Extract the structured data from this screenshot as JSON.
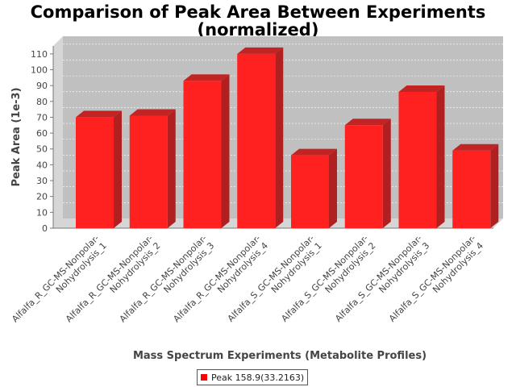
{
  "chart_data": {
    "type": "bar",
    "title": "Comparison of Peak Area Between Experiments",
    "subtitle": "(normalized)",
    "xlabel": "Mass Spectrum Experiments (Metabolite Profiles)",
    "ylabel": "Peak Area (1e-3)",
    "ylim": [
      0,
      115
    ],
    "yticks": [
      0,
      10,
      20,
      30,
      40,
      50,
      60,
      70,
      80,
      90,
      100,
      110
    ],
    "grid": true,
    "legend_position": "bottom",
    "bar_color": "#ff2020",
    "categories": [
      [
        "Alfalfa_R_GC-MS-Nonpolar-",
        "Nohydrolysis_1"
      ],
      [
        "Alfalfa_R_GC-MS-Nonpolar-",
        "Nohydrolysis_2"
      ],
      [
        "Alfalfa_R_GC-MS-Nonpolar-",
        "Nohydrolysis_3"
      ],
      [
        "Alfalfa_R_GC-MS-Nonpolar-",
        "Nohydrolysis_4"
      ],
      [
        "Alfalfa_S_GC-MS-Nonpolar-",
        "Nohydrolysis_1"
      ],
      [
        "Alfalfa_S_GC-MS-Nonpolar-",
        "Nohydrolysis_2"
      ],
      [
        "Alfalfa_S_GC-MS-Nonpolar-",
        "Nohydrolysis_3"
      ],
      [
        "Alfalfa_S_GC-MS-Nonpolar-",
        "Nohydrolysis_4"
      ]
    ],
    "series": [
      {
        "name": "Peak 158.9(33.2163)",
        "values": [
          70,
          71,
          93,
          110,
          46,
          65,
          86,
          49
        ]
      }
    ]
  }
}
